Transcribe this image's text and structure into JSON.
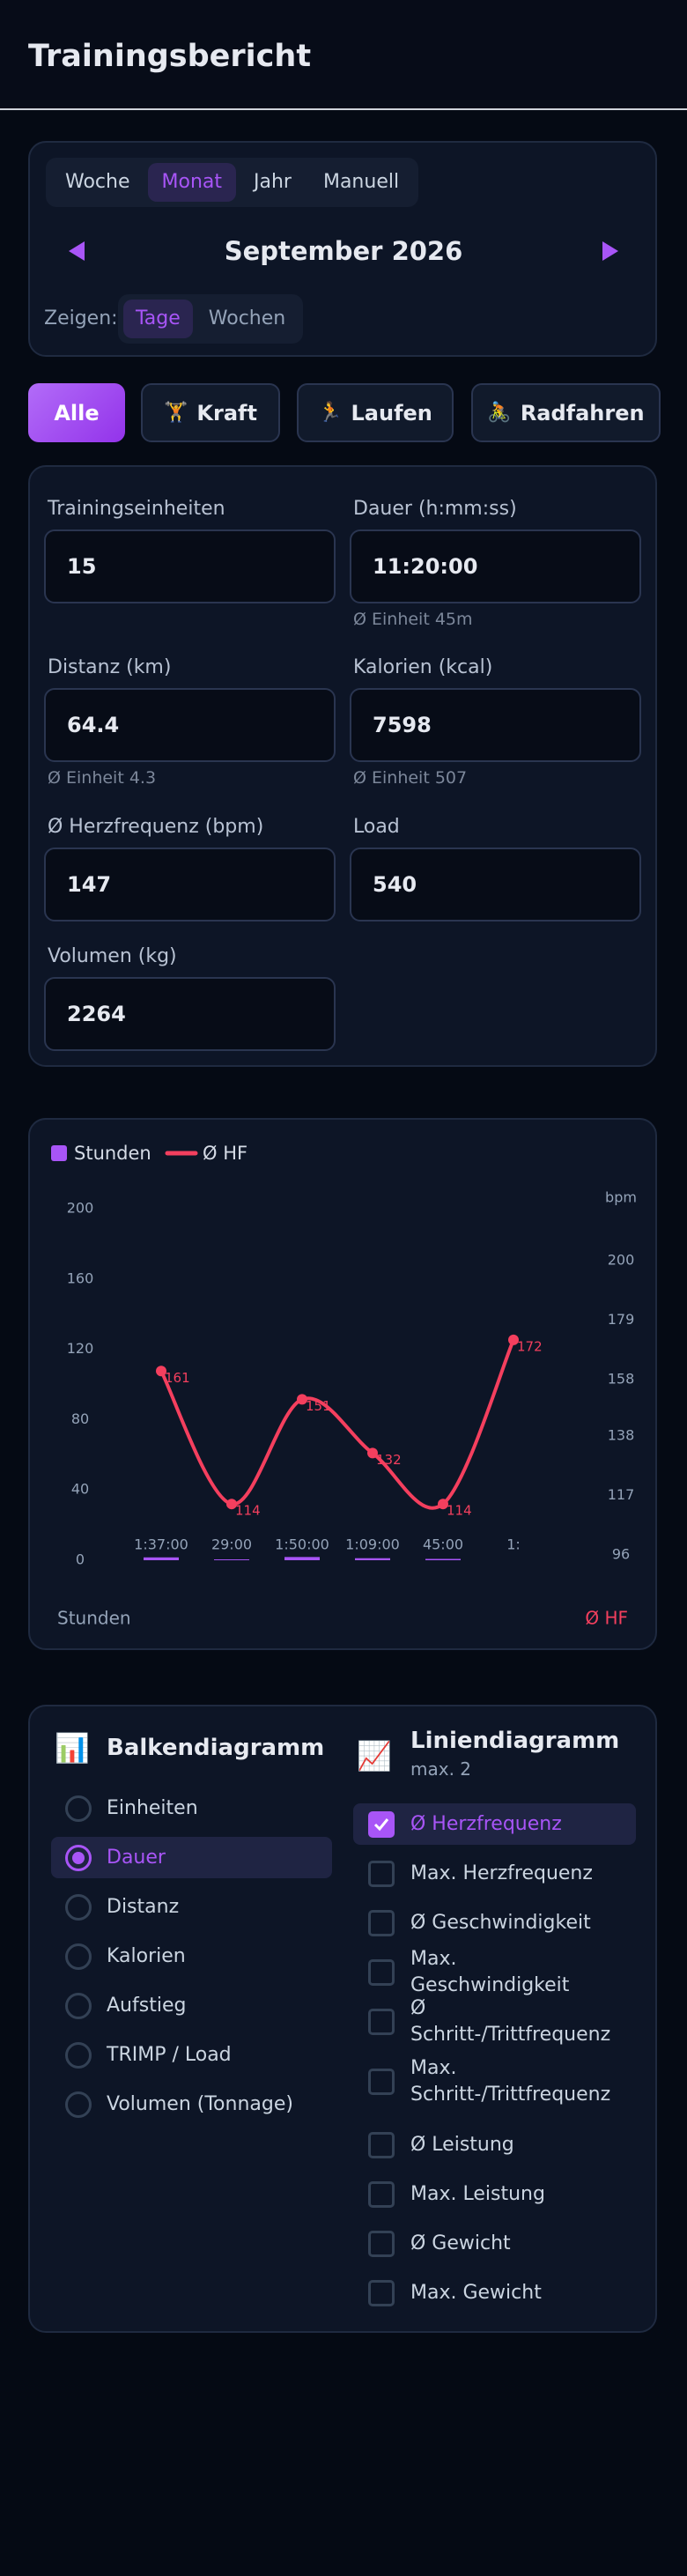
{
  "header": {
    "title": "Trainingsbericht"
  },
  "period": {
    "tabs": [
      "Woche",
      "Monat",
      "Jahr",
      "Manuell"
    ],
    "selected": 1,
    "label": "September 2026",
    "show_label": "Zeigen:",
    "show_options": [
      "Tage",
      "Wochen"
    ],
    "show_selected": 0
  },
  "filters": {
    "items": [
      {
        "label": "Alle"
      },
      {
        "icon": "🏋",
        "label": "Kraft"
      },
      {
        "icon": "🏃",
        "label": "Laufen"
      },
      {
        "icon": "🚴",
        "label": "Radfahren"
      }
    ],
    "selected": 0
  },
  "stats": [
    {
      "label": "Trainingseinheiten",
      "value": 15
    },
    {
      "label": "Dauer (h:mm:ss)",
      "value": "11:20:00",
      "note": "Ø Einheit 45m"
    },
    {
      "label": "Distanz (km)",
      "value": 64.4,
      "note": "Ø Einheit 4.3"
    },
    {
      "label": "Kalorien (kcal)",
      "value": 7598,
      "note": "Ø Einheit 507"
    },
    {
      "label": "Ø Herzfrequenz (bpm)",
      "value": 147
    },
    {
      "label": "Load",
      "value": 540
    },
    {
      "label": "Volumen (kg)",
      "value": 2264
    }
  ],
  "chart_data": {
    "type": "bar-line",
    "categories": [
      "1:37:00",
      "29:00",
      "1:50:00",
      "1:09:00",
      "45:00",
      "1:"
    ],
    "series": [
      {
        "name": "Stunden",
        "color": "#a855f7",
        "values": [
          1.62,
          0.48,
          1.83,
          1.15,
          0.75,
          null
        ]
      },
      {
        "name": "Ø HF",
        "color": "#f43f5e",
        "axis": "y2",
        "values": [
          161,
          114,
          151,
          132,
          114,
          172
        ]
      }
    ],
    "ylim": [
      0,
      200
    ],
    "yticks": [
      0,
      40,
      80,
      120,
      160,
      200
    ],
    "ylabel": "Stunden",
    "y2lim": [
      96,
      200
    ],
    "y2ticks": [
      96,
      117,
      138,
      158,
      179,
      200
    ],
    "y2unit": "bpm",
    "y2label": "Ø HF",
    "grid": false
  },
  "bar_chart": {
    "icon": "📊",
    "title": "Balkendiagramm",
    "options": [
      "Einheiten",
      "Dauer",
      "Distanz",
      "Kalorien",
      "Aufstieg",
      "TRIMP / Load",
      "Volumen (Tonnage)"
    ],
    "selected": 1
  },
  "line_chart": {
    "icon": "📈",
    "title": "Liniendiagramm",
    "subtitle": "max. 2",
    "options": [
      "Ø Herzfrequenz",
      "Max. Herzfrequenz",
      "Ø Geschwindigkeit",
      "Max. Geschwindigkeit",
      "Ø Schritt-/Trittfrequenz",
      "Max. Schritt-/Trittfrequenz",
      "Ø Leistung",
      "Max. Leistung",
      "Ø Gewicht",
      "Max. Gewicht"
    ],
    "checked": [
      0
    ]
  }
}
